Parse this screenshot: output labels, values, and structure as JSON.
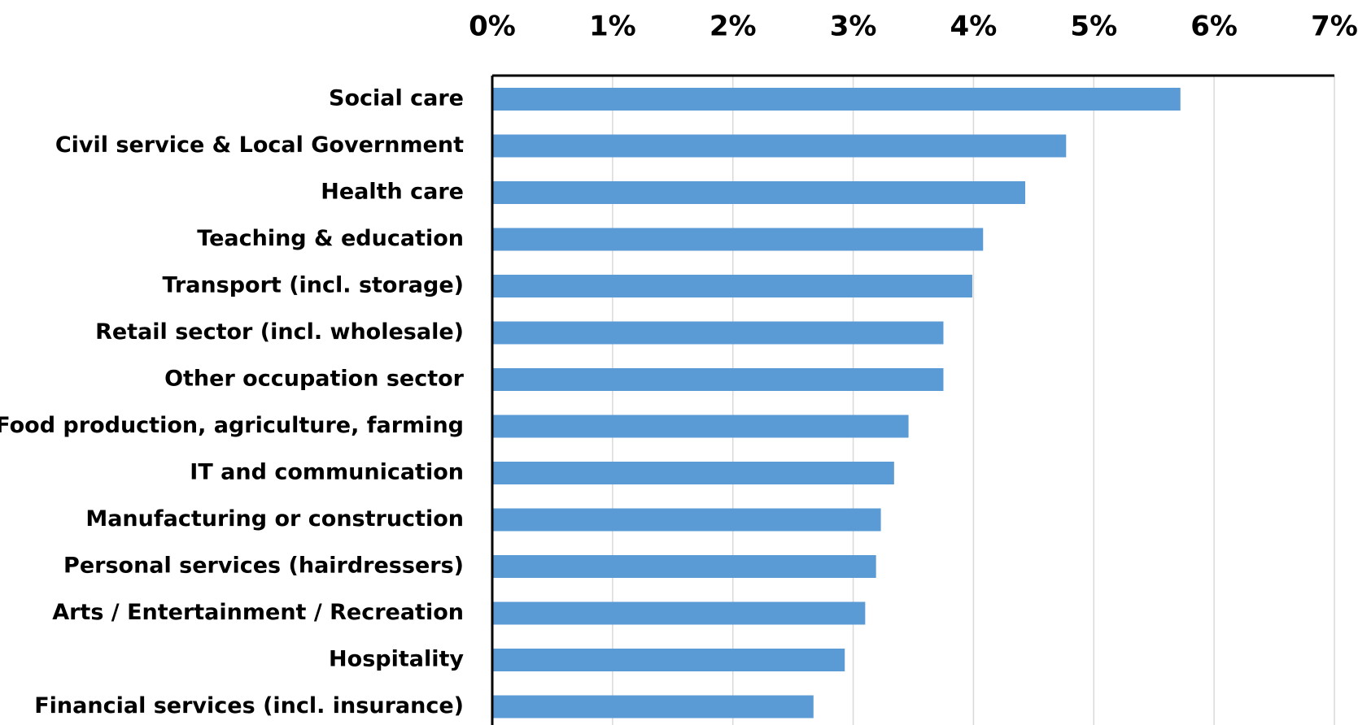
{
  "chart_data": {
    "type": "bar",
    "orientation": "horizontal",
    "categories": [
      "Social care",
      "Civil service & Local Government",
      "Health care",
      "Teaching & education",
      "Transport (incl. storage)",
      "Retail sector (incl. wholesale)",
      "Other occupation sector",
      "Food production, agriculture, farming",
      "IT and communication",
      "Manufacturing or construction",
      "Personal services (hairdressers)",
      "Arts / Entertainment / Recreation",
      "Hospitality",
      "Financial services (incl. insurance)"
    ],
    "values": [
      5.72,
      4.77,
      4.43,
      4.08,
      3.99,
      3.75,
      3.75,
      3.46,
      3.34,
      3.23,
      3.19,
      3.1,
      2.93,
      2.67
    ],
    "title": "",
    "xlabel": "",
    "ylabel": "",
    "xlim": [
      0,
      7
    ],
    "xticks": [
      0,
      1,
      2,
      3,
      4,
      5,
      6,
      7
    ],
    "xtick_labels": [
      "0%",
      "1%",
      "2%",
      "3%",
      "4%",
      "5%",
      "6%",
      "7%"
    ],
    "x_axis_position": "top",
    "grid": "vertical",
    "legend": "none",
    "colors": {
      "bar": "#5B9BD5",
      "grid": "#D9D9D9",
      "axis": "#000000",
      "text": "#000000"
    }
  }
}
